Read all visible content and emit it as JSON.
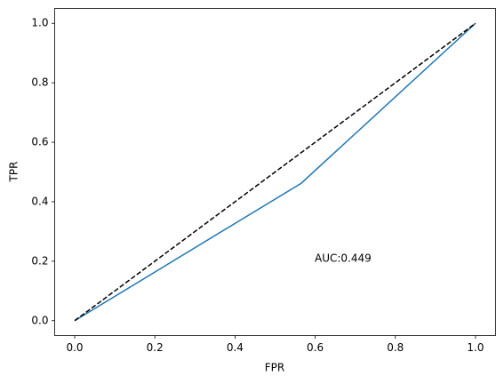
{
  "chart_data": {
    "type": "line",
    "x_label": "FPR",
    "y_label": "TPR",
    "xlim": [
      -0.05,
      1.05
    ],
    "ylim": [
      -0.05,
      1.05
    ],
    "xticks": [
      {
        "value": 0,
        "label": "0.0"
      },
      0.2,
      0.4,
      0.6,
      0.8,
      {
        "value": 1,
        "label": "1.0"
      }
    ],
    "yticks": [
      {
        "value": 0,
        "label": "0.0"
      },
      0.2,
      0.4,
      0.6,
      0.8,
      {
        "value": 1,
        "label": "1.0"
      }
    ],
    "series": [
      {
        "color": "#1f77b4",
        "dash": false,
        "x": [
          0,
          0.565,
          1
        ],
        "values": [
          0,
          0.462,
          1
        ]
      },
      {
        "color": "#000000",
        "dash": true,
        "x": [
          0,
          1
        ],
        "values": [
          0,
          1
        ]
      }
    ],
    "annotation": "AUC:0.449"
  }
}
